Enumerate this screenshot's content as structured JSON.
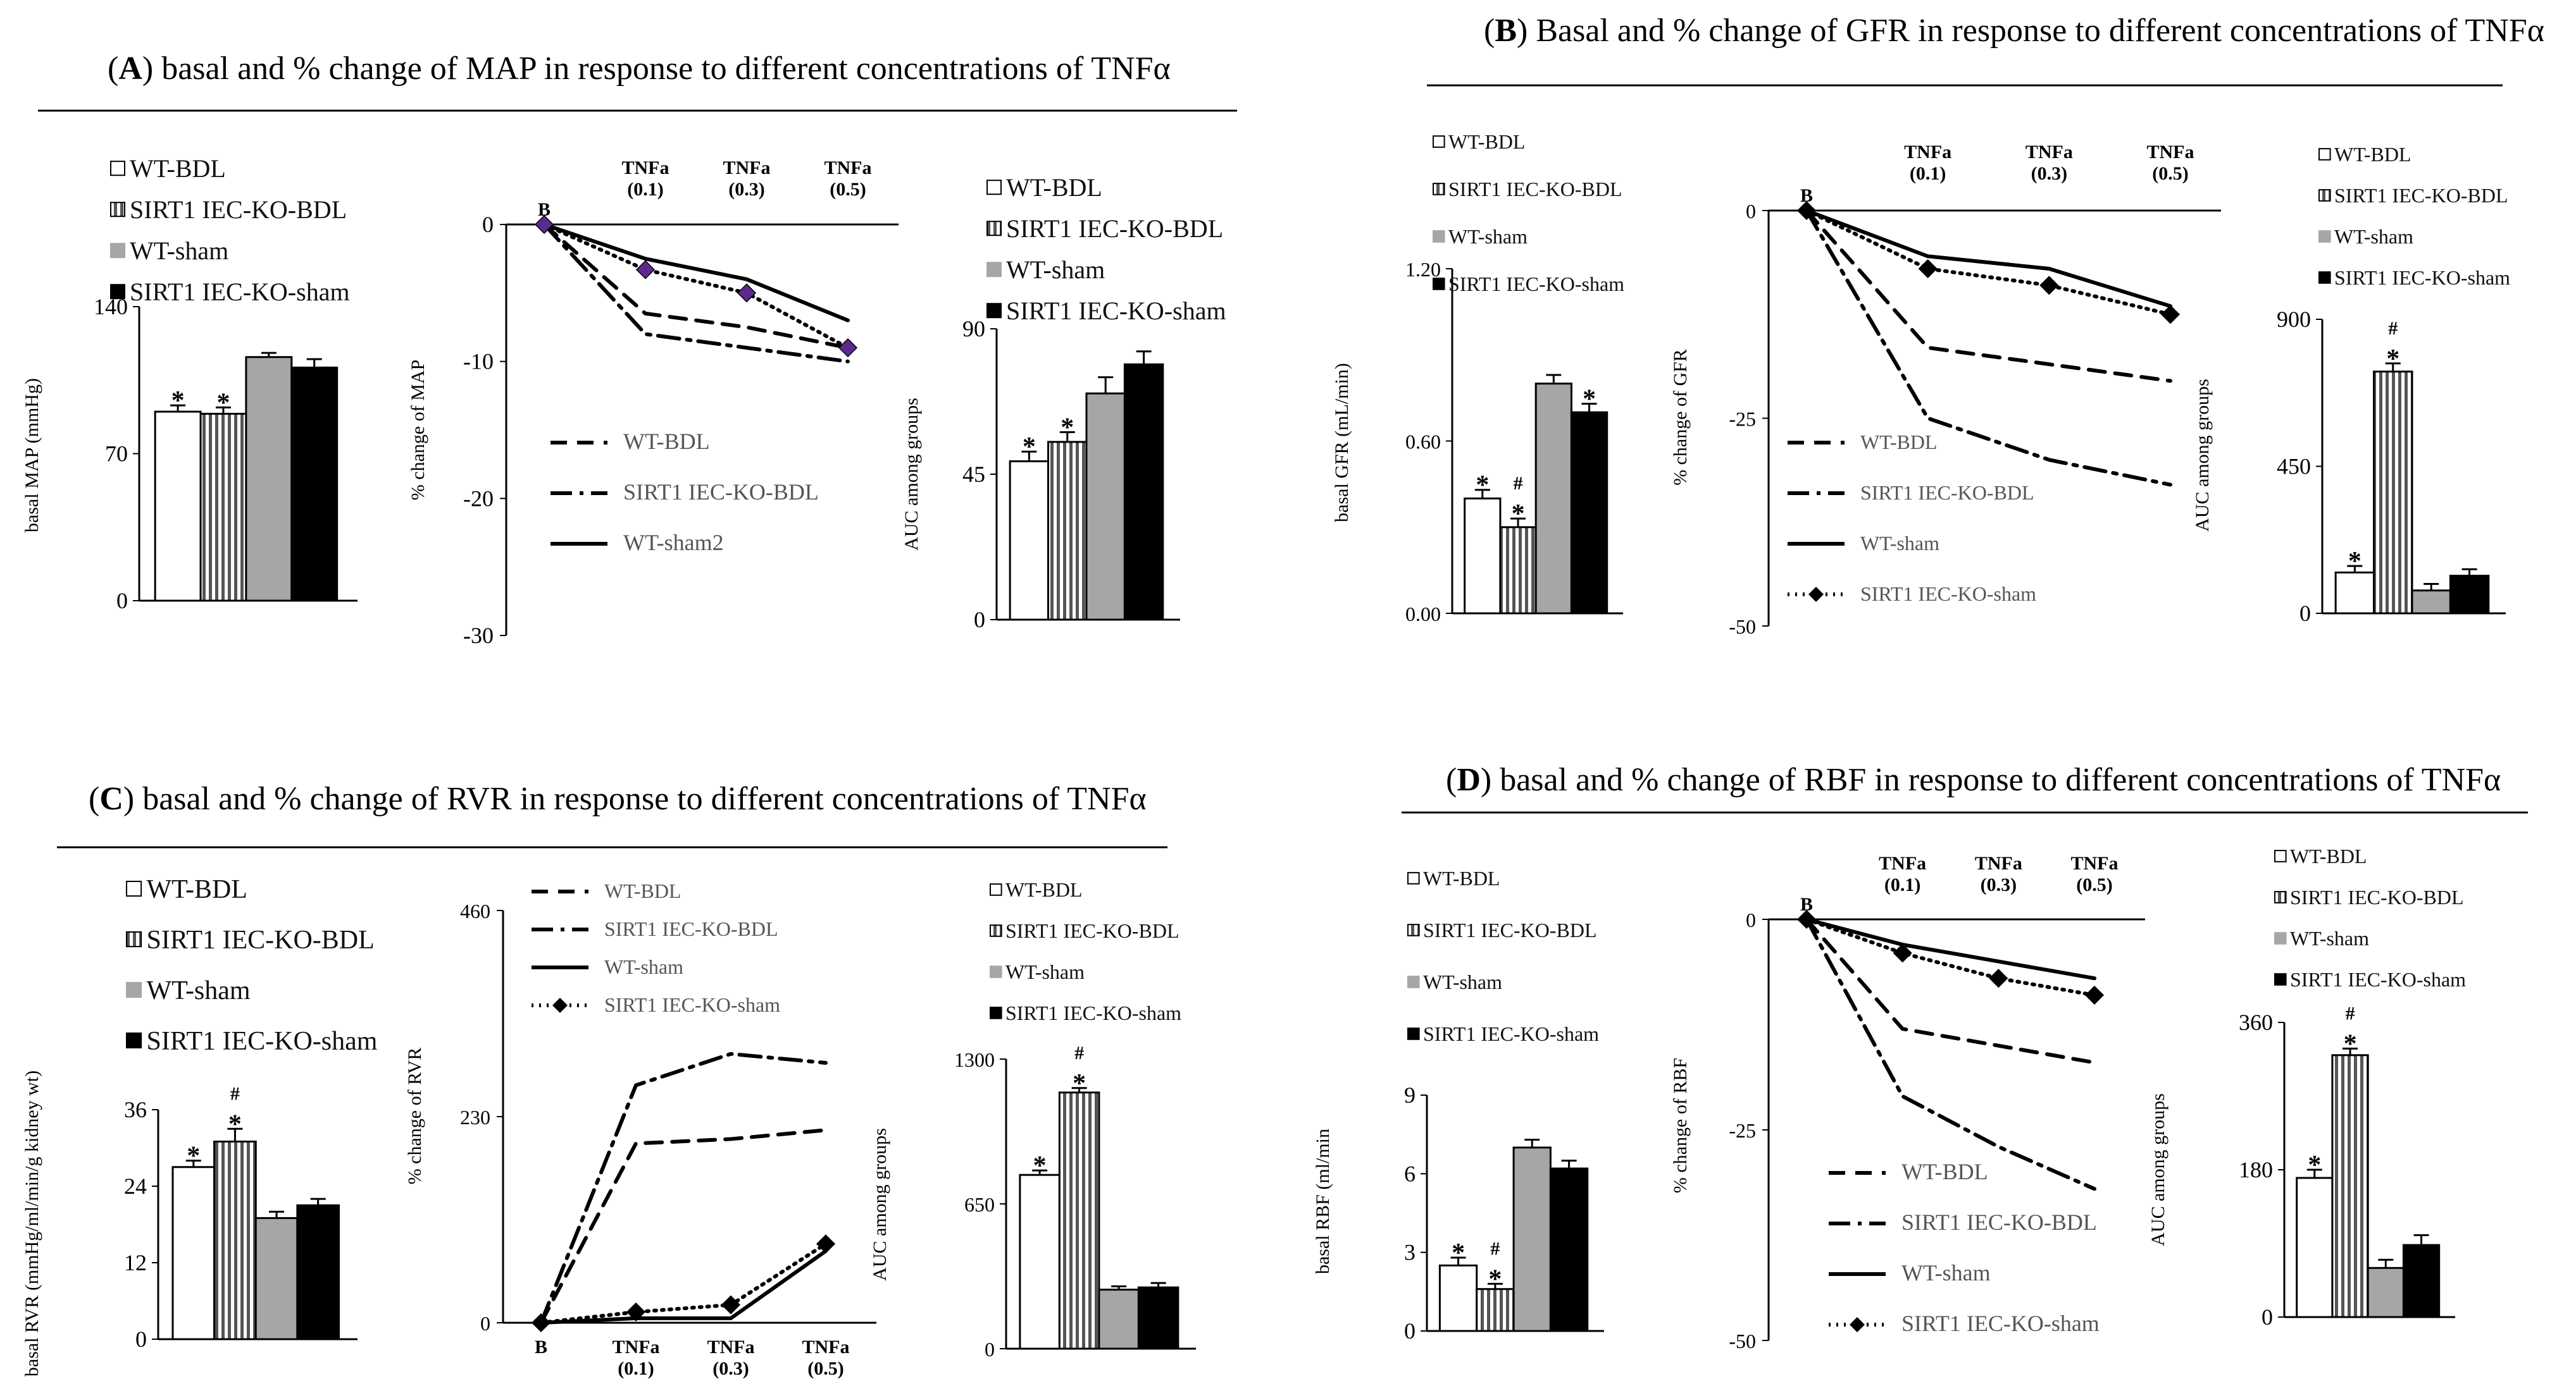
{
  "figure": {
    "panels": [
      {
        "id": "A",
        "label": "A",
        "title": "basal and % change of  MAP in response to different concentrations of TNFα"
      },
      {
        "id": "B",
        "label": "B",
        "title": "Basal and % change of  GFR in response to different concentrations of TNFα"
      },
      {
        "id": "C",
        "label": "C",
        "title": "basal and % change of  RVR in response to different concentrations of TNFα"
      },
      {
        "id": "D",
        "label": "D",
        "title": "basal and % change of  RBF in response to different concentrations of TNFα"
      }
    ]
  },
  "chart_data": [
    {
      "id": "A-basal",
      "panel": "A",
      "type": "bar",
      "ylabel": "basal  MAP (mmHg)",
      "ylim": [
        0,
        140
      ],
      "yticks": [
        0,
        70,
        140
      ],
      "legend": [
        "WT-BDL",
        "SIRT1 IEC-KO-BDL",
        "WT-sham",
        "SIRT1 IEC-KO-sham"
      ],
      "values": [
        90,
        89,
        116,
        111
      ],
      "errors": [
        3,
        3,
        2,
        4
      ],
      "marks": [
        [
          "*"
        ],
        [
          "*"
        ],
        [],
        []
      ]
    },
    {
      "id": "A-change",
      "panel": "A",
      "type": "line",
      "ylabel": "% change of MAP",
      "ylim": [
        -30,
        0
      ],
      "yticks": [
        0,
        -10,
        -20,
        -30
      ],
      "x_top_labels": [
        [
          "TNFa",
          "(0.1)"
        ],
        [
          "TNFa",
          "(0.3)"
        ],
        [
          "TNFa",
          "(0.5)"
        ]
      ],
      "x_start_label": "B",
      "series": [
        {
          "name": "WT-BDL",
          "style": "dash",
          "values": [
            0,
            -6.5,
            -7.5,
            -9
          ]
        },
        {
          "name": "SIRT1 IEC-KO-BDL",
          "style": "dashdot",
          "values": [
            0,
            -8,
            -9,
            -10
          ]
        },
        {
          "name": "WT-sham2",
          "style": "solid",
          "values": [
            0,
            -2.5,
            -4,
            -7
          ]
        },
        {
          "name": "SIRT1 IEC-KO-sham",
          "style": "dotted",
          "values": [
            0,
            -3.3,
            -5,
            -9
          ],
          "hidden_in_legend": true
        }
      ],
      "legend": [
        "WT-BDL",
        "SIRT1 IEC-KO-BDL",
        "WT-sham2"
      ]
    },
    {
      "id": "A-auc",
      "panel": "A",
      "type": "bar",
      "ylabel": "AUC among groups",
      "ylim": [
        0,
        90
      ],
      "yticks": [
        0,
        45,
        90
      ],
      "legend": [
        "WT-BDL",
        "SIRT1 IEC-KO-BDL",
        "WT-sham",
        "SIRT1 IEC-KO-sham"
      ],
      "values": [
        49,
        55,
        70,
        79
      ],
      "errors": [
        3,
        3,
        5,
        4
      ],
      "marks": [
        [
          "*"
        ],
        [
          "*"
        ],
        [],
        []
      ]
    },
    {
      "id": "B-basal",
      "panel": "B",
      "type": "bar",
      "ylabel": "basal GFR  (mL/min)",
      "ylim": [
        0,
        1.2
      ],
      "yticks": [
        "0.00",
        "0.60",
        "1.20"
      ],
      "legend": [
        "WT-BDL",
        "SIRT1 IEC-KO-BDL",
        "WT-sham",
        "SIRT1 IEC-KO-sham"
      ],
      "values": [
        0.4,
        0.3,
        0.8,
        0.7
      ],
      "errors": [
        0.03,
        0.03,
        0.03,
        0.03
      ],
      "marks": [
        [
          "*"
        ],
        [
          "*",
          "#"
        ],
        [],
        [
          "*"
        ]
      ]
    },
    {
      "id": "B-change",
      "panel": "B",
      "type": "line",
      "ylabel": "% change of  GFR",
      "ylim": [
        -50,
        0
      ],
      "yticks": [
        0,
        -25,
        -50
      ],
      "x_top_labels": [
        [
          "TNFa",
          "(0.1)"
        ],
        [
          "TNFa",
          "(0.3)"
        ],
        [
          "TNFa",
          "(0.5)"
        ]
      ],
      "x_start_label": "B",
      "series": [
        {
          "name": "WT-BDL",
          "style": "dash",
          "values": [
            0,
            -16.5,
            -18.5,
            -20.5
          ]
        },
        {
          "name": "SIRT1 IEC-KO-BDL",
          "style": "dashdot",
          "values": [
            0,
            -25,
            -30,
            -33
          ]
        },
        {
          "name": "WT-sham",
          "style": "solid",
          "values": [
            0,
            -5.5,
            -7,
            -11.5
          ]
        },
        {
          "name": "SIRT1 IEC-KO-sham",
          "style": "dotted",
          "values": [
            0,
            -7,
            -9,
            -12.5
          ]
        }
      ],
      "legend": [
        "WT-BDL",
        "SIRT1 IEC-KO-BDL",
        "WT-sham",
        "SIRT1 IEC-KO-sham"
      ]
    },
    {
      "id": "B-auc",
      "panel": "B",
      "type": "bar",
      "ylabel": "AUC among groups",
      "ylim": [
        0,
        900
      ],
      "yticks": [
        0,
        450,
        900
      ],
      "legend": [
        "WT-BDL",
        "SIRT1 IEC-KO-BDL",
        "WT-sham",
        "SIRT1 IEC-KO-sham"
      ],
      "values": [
        125,
        740,
        70,
        115
      ],
      "errors": [
        20,
        25,
        20,
        20
      ],
      "marks": [
        [
          "*"
        ],
        [
          "*",
          "#"
        ],
        [],
        []
      ]
    },
    {
      "id": "C-basal",
      "panel": "C",
      "type": "bar",
      "ylabel": "basal RVR (mmHg/ml/min/g kidney wt)",
      "ylim": [
        0,
        36
      ],
      "yticks": [
        0,
        12,
        24,
        36
      ],
      "legend": [
        "WT-BDL",
        "SIRT1 IEC-KO-BDL",
        "WT-sham",
        "SIRT1 IEC-KO-sham"
      ],
      "values": [
        27,
        31,
        19,
        21
      ],
      "errors": [
        1,
        2,
        1,
        1
      ],
      "marks": [
        [
          "*"
        ],
        [
          "*",
          "#"
        ],
        [],
        []
      ]
    },
    {
      "id": "C-change",
      "panel": "C",
      "type": "line",
      "ylabel": "% change of  RVR",
      "ylim": [
        0,
        460
      ],
      "yticks": [
        0,
        230,
        460
      ],
      "x_bottom_labels": [
        [
          "TNFa",
          "(0.1)"
        ],
        [
          "TNFa",
          "(0.3)"
        ],
        [
          "TNFa",
          "(0.5)"
        ]
      ],
      "x_start_label": "B",
      "series": [
        {
          "name": "WT-BDL",
          "style": "dash",
          "values": [
            0,
            200,
            205,
            215
          ]
        },
        {
          "name": "SIRT1 IEC-KO-BDL",
          "style": "dashdot",
          "values": [
            0,
            265,
            300,
            290
          ]
        },
        {
          "name": "WT-sham",
          "style": "solid",
          "values": [
            0,
            5,
            5,
            80
          ]
        },
        {
          "name": "SIRT1 IEC-KO-sham",
          "style": "dotted",
          "values": [
            0,
            12,
            20,
            88
          ]
        }
      ],
      "legend": [
        "WT-BDL",
        "SIRT1 IEC-KO-BDL",
        "WT-sham",
        "SIRT1 IEC-KO-sham"
      ]
    },
    {
      "id": "C-auc",
      "panel": "C",
      "type": "bar",
      "ylabel": "AUC among groups",
      "ylim": [
        0,
        1300
      ],
      "yticks": [
        0,
        650,
        1300
      ],
      "legend": [
        "WT-BDL",
        "SIRT1 IEC-KO-BDL",
        "WT-sham",
        "SIRT1 IEC-KO-sham"
      ],
      "values": [
        780,
        1150,
        265,
        275
      ],
      "errors": [
        20,
        20,
        15,
        20
      ],
      "marks": [
        [
          "*"
        ],
        [
          "*",
          "#"
        ],
        [],
        []
      ]
    },
    {
      "id": "D-basal",
      "panel": "D",
      "type": "bar",
      "ylabel": "basal RBF (ml/min",
      "ylim": [
        0,
        9
      ],
      "yticks": [
        0,
        3,
        6,
        9
      ],
      "legend": [
        "WT-BDL",
        "SIRT1 IEC-KO-BDL",
        "WT-sham",
        "SIRT1 IEC-KO-sham"
      ],
      "values": [
        2.5,
        1.6,
        7,
        6.2
      ],
      "errors": [
        0.3,
        0.2,
        0.3,
        0.3
      ],
      "marks": [
        [
          "*"
        ],
        [
          "*",
          "#"
        ],
        [],
        []
      ]
    },
    {
      "id": "D-change",
      "panel": "D",
      "type": "line",
      "ylabel": "% change of  RBF",
      "ylim": [
        -50,
        0
      ],
      "yticks": [
        0,
        -25,
        -50
      ],
      "x_top_labels": [
        [
          "TNFa",
          "(0.1)"
        ],
        [
          "TNFa",
          "(0.3)"
        ],
        [
          "TNFa",
          "(0.5)"
        ]
      ],
      "x_start_label": "B",
      "series": [
        {
          "name": "WT-BDL",
          "style": "dash",
          "values": [
            0,
            -13,
            -15,
            -17
          ]
        },
        {
          "name": "SIRT1 IEC-KO-BDL",
          "style": "dashdot",
          "values": [
            0,
            -21,
            -27,
            -32
          ]
        },
        {
          "name": "WT-sham",
          "style": "solid",
          "values": [
            0,
            -3,
            -5,
            -7
          ]
        },
        {
          "name": "SIRT1 IEC-KO-sham",
          "style": "dotted",
          "values": [
            0,
            -4,
            -7,
            -9
          ]
        }
      ],
      "legend": [
        "WT-BDL",
        "SIRT1 IEC-KO-BDL",
        "WT-sham",
        "SIRT1 IEC-KO-sham"
      ]
    },
    {
      "id": "D-auc",
      "panel": "D",
      "type": "bar",
      "ylabel": "AUC among groups",
      "ylim": [
        0,
        360
      ],
      "yticks": [
        0,
        180,
        360
      ],
      "legend": [
        "WT-BDL",
        "SIRT1 IEC-KO-BDL",
        "WT-sham",
        "SIRT1 IEC-KO-sham"
      ],
      "values": [
        170,
        320,
        60,
        88
      ],
      "errors": [
        10,
        8,
        10,
        12
      ],
      "marks": [
        [
          "*"
        ],
        [
          "*",
          "#"
        ],
        [],
        []
      ]
    }
  ],
  "colors": {
    "axis": "#000000",
    "bar_wt_bdl": "#ffffff",
    "bar_ko_bdl": "#6b6b6b",
    "bar_wt_sham": "#a6a6a6",
    "bar_ko_sham": "#000000",
    "marker": "#5b2a8c",
    "diamond": "#000000"
  }
}
